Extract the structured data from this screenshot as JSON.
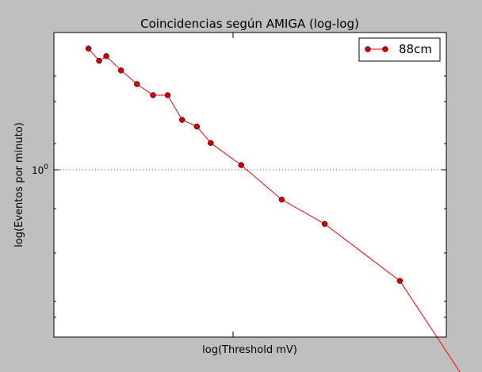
{
  "chart_data": {
    "type": "line",
    "title": "Coincidencias según AMIGA (log-log)",
    "xlabel": "log(Threshold mV)",
    "ylabel": "log(Eventos por minuto)",
    "xscale": "log",
    "yscale": "log",
    "grid": "dotted horizontal line at y = 10^0",
    "legend_position": "top-right",
    "y_tick_label": "10^0",
    "y_tick_value": 1.0,
    "xlim": [
      1,
      100
    ],
    "ylim": [
      0.153,
      4.44
    ],
    "series": [
      {
        "name": "88cm",
        "color": "#ff0000",
        "marker_color": "#cc0000",
        "x": [
          1.5,
          1.7,
          1.85,
          2.2,
          2.65,
          3.2,
          3.8,
          4.5,
          5.35,
          6.3,
          9.0,
          14.5,
          24.0,
          58.0,
          125.0
        ],
        "y": [
          3.72,
          3.25,
          3.42,
          2.92,
          2.51,
          2.22,
          2.22,
          1.69,
          1.57,
          1.31,
          1.025,
          0.7,
          0.535,
          0.285,
          0.095
        ]
      }
    ]
  }
}
